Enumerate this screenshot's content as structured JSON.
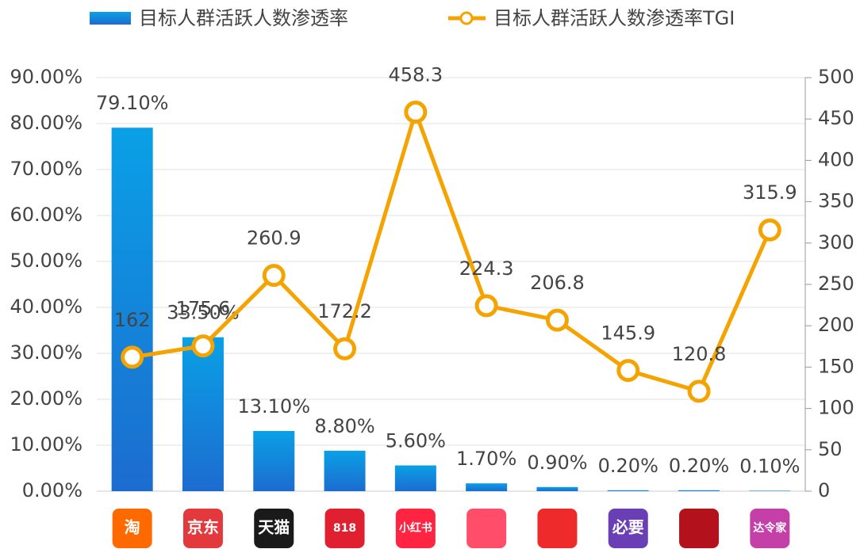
{
  "chart_data": {
    "type": "bar_line",
    "categories": [
      "淘",
      "京东",
      "天猫",
      "818",
      "小红书",
      null,
      null,
      "必要",
      null,
      "达令家"
    ],
    "icon_colors": [
      "#ff6a00",
      "#e4393c",
      "#1a1a1a",
      "#e02030",
      "#ff2442",
      "#ff4d6a",
      "#ee2a2a",
      "#6a3fb5",
      "#b3121c",
      "#c53fa8"
    ],
    "series": [
      {
        "name": "目标人群活跃人数渗透率",
        "type": "bar",
        "color": "#1280d8",
        "values": [
          79.1,
          33.5,
          13.1,
          8.8,
          5.6,
          1.7,
          0.9,
          0.2,
          0.2,
          0.1
        ],
        "value_labels": [
          "79.10%",
          "33.50%",
          "13.10%",
          "8.80%",
          "5.60%",
          "1.70%",
          "0.90%",
          "0.20%",
          "0.20%",
          "0.10%"
        ]
      },
      {
        "name": "目标人群活跃人数渗透率TGI",
        "type": "line",
        "axis": "y2",
        "color": "#f5a300",
        "values": [
          162,
          175.6,
          260.9,
          172.2,
          458.3,
          224.3,
          206.8,
          145.9,
          120.8,
          315.9
        ]
      }
    ],
    "ylim": [
      0,
      90
    ],
    "yticks": [
      {
        "value": 0,
        "label": "0.00%"
      },
      {
        "value": 10,
        "label": "10.00%"
      },
      {
        "value": 20,
        "label": "20.00%"
      },
      {
        "value": 30,
        "label": "30.00%"
      },
      {
        "value": 40,
        "label": "40.00%"
      },
      {
        "value": 50,
        "label": "50.00%"
      },
      {
        "value": 60,
        "label": "60.00%"
      },
      {
        "value": 70,
        "label": "70.00%"
      },
      {
        "value": 80,
        "label": "80.00%"
      },
      {
        "value": 90,
        "label": "90.00%"
      }
    ],
    "y2lim": [
      0,
      500
    ],
    "y2ticks": [
      0,
      50,
      100,
      150,
      200,
      250,
      300,
      350,
      400,
      450,
      500
    ],
    "grid": true,
    "legend": "top"
  }
}
